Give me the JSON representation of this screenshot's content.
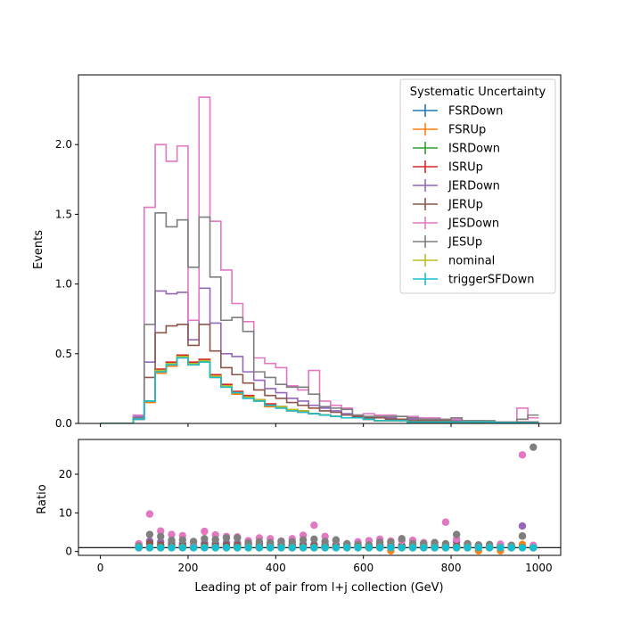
{
  "chart_data": [
    {
      "type": "step",
      "panel": "main",
      "title": "",
      "xlabel": "",
      "ylabel": "Events",
      "xlim": [
        -50,
        1050
      ],
      "ylim": [
        0,
        2.5
      ],
      "xticks": [
        0,
        200,
        400,
        600,
        800,
        1000
      ],
      "yticks": [
        0.0,
        0.5,
        1.0,
        1.5,
        2.0
      ],
      "ytick_labels": [
        "0.0",
        "0.5",
        "1.0",
        "1.5",
        "2.0"
      ],
      "bin_edges": [
        0,
        25,
        50,
        75,
        100,
        125,
        150,
        175,
        200,
        225,
        250,
        275,
        300,
        325,
        350,
        375,
        400,
        425,
        450,
        475,
        500,
        525,
        550,
        575,
        600,
        625,
        650,
        675,
        700,
        725,
        750,
        775,
        800,
        825,
        850,
        875,
        900,
        925,
        950,
        975,
        1000
      ],
      "legend_title": "Systematic Uncertainty",
      "legend_position": "top-right",
      "series": [
        {
          "name": "FSRDown",
          "color": "#1f77b4",
          "values": [
            0,
            0,
            0,
            0.03,
            0.16,
            0.38,
            0.42,
            0.48,
            0.43,
            0.45,
            0.34,
            0.27,
            0.22,
            0.19,
            0.17,
            0.13,
            0.12,
            0.1,
            0.09,
            0.07,
            0.06,
            0.05,
            0.04,
            0.04,
            0.03,
            0.02,
            0.02,
            0.02,
            0.01,
            0.01,
            0.01,
            0.01,
            0.01,
            0.01,
            0.01,
            0.01,
            0.005,
            0.005,
            0.005,
            0.005
          ]
        },
        {
          "name": "FSRUp",
          "color": "#ff7f0e",
          "values": [
            0,
            0,
            0,
            0.03,
            0.15,
            0.36,
            0.41,
            0.47,
            0.42,
            0.44,
            0.33,
            0.26,
            0.21,
            0.18,
            0.16,
            0.12,
            0.11,
            0.09,
            0.08,
            0.07,
            0.06,
            0.05,
            0.04,
            0.04,
            0.03,
            0.02,
            0.02,
            0.02,
            0.01,
            0.01,
            0.01,
            0.01,
            0.01,
            0.01,
            0.01,
            0.01,
            0.005,
            0.005,
            0.005,
            0.005
          ]
        },
        {
          "name": "ISRDown",
          "color": "#2ca02c",
          "values": [
            0,
            0,
            0,
            0.03,
            0.16,
            0.38,
            0.43,
            0.48,
            0.43,
            0.45,
            0.34,
            0.27,
            0.22,
            0.19,
            0.17,
            0.13,
            0.12,
            0.1,
            0.09,
            0.07,
            0.06,
            0.05,
            0.04,
            0.04,
            0.03,
            0.02,
            0.02,
            0.02,
            0.01,
            0.01,
            0.01,
            0.01,
            0.01,
            0.01,
            0.01,
            0.01,
            0.005,
            0.005,
            0.005,
            0.005
          ]
        },
        {
          "name": "ISRUp",
          "color": "#d62728",
          "values": [
            0,
            0,
            0,
            0.03,
            0.16,
            0.39,
            0.44,
            0.49,
            0.44,
            0.46,
            0.35,
            0.28,
            0.23,
            0.2,
            0.17,
            0.14,
            0.12,
            0.1,
            0.09,
            0.07,
            0.06,
            0.05,
            0.04,
            0.04,
            0.03,
            0.02,
            0.02,
            0.02,
            0.01,
            0.01,
            0.01,
            0.01,
            0.01,
            0.01,
            0.01,
            0.01,
            0.005,
            0.005,
            0.005,
            0.005
          ]
        },
        {
          "name": "JERDown",
          "color": "#9467bd",
          "values": [
            0,
            0,
            0,
            0.05,
            0.44,
            0.95,
            0.93,
            0.94,
            0.6,
            0.97,
            0.72,
            0.5,
            0.48,
            0.37,
            0.31,
            0.25,
            0.22,
            0.18,
            0.16,
            0.13,
            0.11,
            0.09,
            0.07,
            0.06,
            0.05,
            0.04,
            0.04,
            0.03,
            0.03,
            0.02,
            0.02,
            0.02,
            0.02,
            0.015,
            0.015,
            0.01,
            0.01,
            0.01,
            0.01,
            0.01
          ]
        },
        {
          "name": "JERUp",
          "color": "#8c564b",
          "values": [
            0,
            0,
            0,
            0.04,
            0.33,
            0.65,
            0.7,
            0.71,
            0.56,
            0.71,
            0.52,
            0.4,
            0.35,
            0.29,
            0.24,
            0.2,
            0.18,
            0.15,
            0.13,
            0.11,
            0.09,
            0.08,
            0.06,
            0.05,
            0.04,
            0.04,
            0.03,
            0.03,
            0.02,
            0.02,
            0.02,
            0.02,
            0.015,
            0.015,
            0.01,
            0.01,
            0.01,
            0.01,
            0.01,
            0.01
          ]
        },
        {
          "name": "JESDown",
          "color": "#e377c2",
          "values": [
            0,
            0,
            0,
            0.06,
            1.55,
            2.0,
            1.88,
            1.99,
            0.74,
            2.34,
            1.45,
            1.1,
            0.86,
            0.73,
            0.47,
            0.43,
            0.4,
            0.27,
            0.24,
            0.38,
            0.16,
            0.13,
            0.11,
            0.06,
            0.07,
            0.06,
            0.06,
            0.05,
            0.05,
            0.04,
            0.04,
            0.03,
            0.03,
            0.02,
            0.02,
            0.01,
            0.01,
            0.01,
            0.11,
            0.04
          ]
        },
        {
          "name": "JESUp",
          "color": "#7f7f7f",
          "values": [
            0,
            0,
            0,
            0.04,
            0.71,
            1.51,
            1.41,
            1.46,
            1.12,
            1.48,
            1.05,
            0.74,
            0.76,
            0.66,
            0.37,
            0.33,
            0.28,
            0.26,
            0.26,
            0.21,
            0.12,
            0.11,
            0.1,
            0.06,
            0.05,
            0.05,
            0.05,
            0.05,
            0.04,
            0.03,
            0.03,
            0.03,
            0.04,
            0.02,
            0.02,
            0.02,
            0.01,
            0.01,
            0.03,
            0.06
          ]
        },
        {
          "name": "nominal",
          "color": "#bcbd22",
          "values": [
            0,
            0,
            0,
            0.03,
            0.16,
            0.38,
            0.43,
            0.48,
            0.43,
            0.45,
            0.34,
            0.27,
            0.22,
            0.19,
            0.17,
            0.13,
            0.12,
            0.1,
            0.09,
            0.07,
            0.06,
            0.05,
            0.04,
            0.04,
            0.03,
            0.02,
            0.02,
            0.02,
            0.01,
            0.01,
            0.01,
            0.01,
            0.01,
            0.01,
            0.01,
            0.01,
            0.005,
            0.005,
            0.005,
            0.005
          ]
        },
        {
          "name": "triggerSFDown",
          "color": "#17becf",
          "values": [
            0,
            0,
            0,
            0.03,
            0.16,
            0.37,
            0.42,
            0.47,
            0.42,
            0.44,
            0.33,
            0.26,
            0.22,
            0.18,
            0.16,
            0.13,
            0.11,
            0.09,
            0.08,
            0.07,
            0.06,
            0.05,
            0.04,
            0.04,
            0.03,
            0.02,
            0.02,
            0.02,
            0.01,
            0.01,
            0.01,
            0.01,
            0.01,
            0.01,
            0.01,
            0.01,
            0.005,
            0.005,
            0.005,
            0.005
          ]
        }
      ]
    },
    {
      "type": "scatter",
      "panel": "ratio",
      "xlabel": "Leading pt of pair from l+j collection (GeV)",
      "ylabel": "Ratio",
      "xlim": [
        -50,
        1050
      ],
      "ylim": [
        -1,
        29
      ],
      "xticks": [
        0,
        200,
        400,
        600,
        800,
        1000
      ],
      "yticks": [
        0,
        10,
        20
      ],
      "reference_line": 1,
      "x": [
        87.5,
        112.5,
        137.5,
        162.5,
        187.5,
        212.5,
        237.5,
        262.5,
        287.5,
        312.5,
        337.5,
        362.5,
        387.5,
        412.5,
        437.5,
        462.5,
        487.5,
        512.5,
        537.5,
        562.5,
        587.5,
        612.5,
        637.5,
        662.5,
        687.5,
        712.5,
        737.5,
        762.5,
        787.5,
        812.5,
        837.5,
        862.5,
        887.5,
        912.5,
        937.5,
        962.5,
        987.5
      ],
      "series": [
        {
          "name": "FSRDown",
          "color": "#1f77b4",
          "values": [
            1.0,
            1.0,
            1.0,
            1.0,
            1.0,
            1.0,
            1.0,
            1.0,
            1.0,
            1.0,
            1.0,
            1.0,
            1.0,
            1.0,
            1.0,
            1.0,
            1.0,
            1.0,
            1.0,
            1.0,
            1.0,
            1.0,
            1.0,
            1.0,
            1.0,
            1.0,
            1.0,
            1.0,
            1.0,
            1.0,
            1.0,
            1.0,
            1.0,
            1.0,
            1.0,
            1.0,
            1.0
          ]
        },
        {
          "name": "FSRUp",
          "color": "#ff7f0e",
          "values": [
            0.95,
            0.95,
            0.95,
            0.97,
            0.97,
            0.97,
            0.97,
            0.96,
            0.95,
            0.95,
            0.94,
            0.95,
            0.94,
            0.94,
            0.95,
            0.95,
            0.96,
            0.95,
            0.97,
            0.96,
            0.94,
            0.95,
            0.95,
            0.2,
            0.95,
            0.95,
            0.95,
            0.95,
            0.95,
            0.96,
            0.95,
            0.2,
            0.95,
            0.2,
            0.95,
            1.8,
            0.95
          ]
        },
        {
          "name": "ISRDown",
          "color": "#2ca02c",
          "values": [
            1.0,
            1.0,
            1.0,
            1.0,
            1.0,
            1.0,
            1.0,
            1.0,
            1.0,
            1.0,
            1.0,
            1.0,
            1.0,
            1.0,
            1.0,
            1.0,
            1.0,
            1.0,
            1.0,
            1.0,
            1.0,
            1.0,
            1.0,
            1.0,
            1.0,
            1.0,
            1.0,
            1.0,
            1.0,
            1.0,
            1.0,
            1.0,
            1.0,
            1.0,
            1.0,
            1.0,
            1.0
          ]
        },
        {
          "name": "ISRUp",
          "color": "#d62728",
          "values": [
            1.02,
            1.02,
            1.02,
            1.02,
            1.02,
            1.02,
            1.03,
            1.03,
            1.03,
            1.02,
            1.02,
            1.03,
            1.02,
            1.03,
            1.02,
            1.02,
            1.03,
            1.03,
            1.02,
            1.02,
            1.03,
            1.02,
            1.02,
            1.02,
            1.03,
            1.02,
            1.02,
            1.02,
            1.02,
            1.03,
            1.02,
            1.02,
            1.02,
            1.02,
            1.03,
            1.02,
            1.02
          ]
        },
        {
          "name": "JERDown",
          "color": "#9467bd",
          "values": [
            1.6,
            2.7,
            2.5,
            2.2,
            2.0,
            1.4,
            2.2,
            2.1,
            2.2,
            2.2,
            2.0,
            1.9,
            1.8,
            1.9,
            1.8,
            1.9,
            1.8,
            1.8,
            1.8,
            1.6,
            1.7,
            1.7,
            1.8,
            1.7,
            1.6,
            1.8,
            1.6,
            1.6,
            1.5,
            2.5,
            1.5,
            1.7,
            1.4,
            1.5,
            1.4,
            6.6,
            1.3
          ]
        },
        {
          "name": "JERUp",
          "color": "#8c564b",
          "values": [
            1.4,
            2.1,
            1.7,
            1.6,
            1.5,
            1.3,
            1.6,
            1.5,
            1.6,
            1.6,
            1.4,
            1.4,
            1.4,
            1.5,
            1.4,
            1.5,
            1.5,
            1.4,
            1.5,
            1.3,
            1.4,
            1.3,
            1.4,
            1.3,
            1.4,
            1.3,
            1.3,
            1.4,
            1.3,
            1.5,
            1.3,
            1.4,
            1.2,
            1.3,
            1.2,
            4.0,
            1.2
          ]
        },
        {
          "name": "JESDown",
          "color": "#e377c2",
          "values": [
            2.0,
            9.7,
            5.3,
            4.4,
            4.1,
            1.7,
            5.2,
            4.3,
            3.9,
            3.8,
            2.8,
            3.5,
            3.3,
            2.7,
            3.3,
            4.2,
            6.8,
            3.9,
            2.9,
            1.8,
            2.5,
            2.8,
            3.2,
            2.7,
            2.9,
            2.9,
            2.3,
            2.3,
            7.6,
            3.2,
            2.0,
            1.5,
            1.5,
            1.9,
            1.3,
            25.0,
            1.6
          ]
        },
        {
          "name": "JESUp",
          "color": "#7f7f7f",
          "values": [
            1.4,
            4.4,
            3.9,
            2.9,
            3.0,
            2.6,
            3.3,
            3.1,
            3.5,
            3.5,
            2.2,
            2.5,
            2.3,
            2.6,
            2.5,
            3.0,
            3.2,
            2.6,
            3.0,
            2.0,
            1.8,
            1.7,
            2.4,
            2.4,
            3.3,
            2.0,
            2.0,
            2.3,
            2.0,
            4.4,
            2.0,
            1.6,
            1.8,
            1.1,
            1.6,
            4.0,
            27.0
          ]
        },
        {
          "name": "nominal",
          "color": "#bcbd22",
          "values": [
            1.0,
            1.0,
            1.0,
            1.0,
            1.0,
            1.0,
            1.0,
            1.0,
            1.0,
            1.0,
            1.0,
            1.0,
            1.0,
            1.0,
            1.0,
            1.0,
            1.0,
            1.0,
            1.0,
            1.0,
            1.0,
            1.0,
            1.0,
            1.0,
            1.0,
            1.0,
            1.0,
            1.0,
            1.0,
            1.0,
            1.0,
            1.0,
            1.0,
            1.0,
            1.0,
            1.0,
            1.0
          ]
        },
        {
          "name": "triggerSFDown",
          "color": "#17becf",
          "values": [
            0.97,
            0.97,
            0.97,
            0.97,
            0.97,
            0.97,
            0.97,
            0.97,
            0.97,
            0.97,
            0.97,
            0.97,
            0.97,
            0.97,
            0.97,
            0.97,
            0.97,
            0.97,
            0.97,
            0.97,
            0.97,
            0.97,
            0.97,
            0.97,
            0.97,
            0.97,
            0.97,
            0.97,
            0.97,
            0.97,
            0.97,
            0.97,
            0.97,
            0.97,
            0.97,
            0.97,
            0.97
          ]
        }
      ]
    }
  ]
}
